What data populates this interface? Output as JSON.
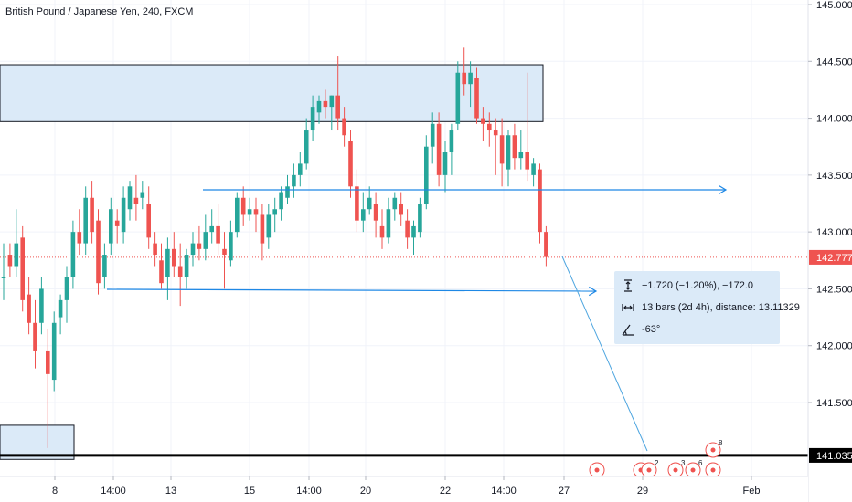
{
  "header": {
    "title": "British Pound / Japanese Yen, 240, FXCM"
  },
  "measure": {
    "price_change": "−1.720 (−1.20%), −172.0",
    "bars_distance": "13 bars (2d 4h), distance: 13.11329",
    "angle": "-63°"
  },
  "chart_data": {
    "type": "candlestick",
    "symbol": "British Pound / Japanese Yen",
    "interval": "240",
    "source": "FXCM",
    "y_ticks": [
      145.0,
      144.5,
      144.0,
      143.5,
      143.0,
      142.5,
      142.0,
      141.5
    ],
    "y_tick_labels": [
      "145.000",
      "144.500",
      "144.000",
      "143.500",
      "143.000",
      "142.500",
      "142.000",
      "141.500"
    ],
    "ylim": [
      140.85,
      145.05
    ],
    "x_tick_labels": [
      "8",
      "14:00",
      "13",
      "15",
      "14:00",
      "20",
      "22",
      "14:00",
      "27",
      "29",
      "Feb"
    ],
    "last_price": "142.777",
    "support_price": "141.035",
    "candles": [
      [
        142.6,
        142.9,
        142.4,
        142.6
      ],
      [
        142.8,
        142.9,
        142.6,
        142.7
      ],
      [
        142.7,
        143.2,
        142.6,
        142.9
      ],
      [
        142.95,
        143.05,
        142.3,
        142.4
      ],
      [
        142.45,
        142.6,
        142.1,
        142.2
      ],
      [
        142.2,
        142.4,
        141.8,
        141.95
      ],
      [
        142.2,
        142.6,
        142.1,
        142.5
      ],
      [
        141.95,
        142.15,
        141.1,
        141.75
      ],
      [
        141.7,
        142.3,
        141.6,
        142.2
      ],
      [
        142.25,
        142.45,
        142.1,
        142.4
      ],
      [
        142.4,
        142.7,
        142.2,
        142.6
      ],
      [
        142.6,
        143.1,
        142.5,
        143.0
      ],
      [
        143.0,
        143.2,
        142.8,
        142.9
      ],
      [
        142.9,
        143.4,
        142.8,
        143.3
      ],
      [
        143.3,
        143.45,
        142.9,
        143.0
      ],
      [
        143.1,
        143.2,
        142.45,
        142.55
      ],
      [
        142.6,
        142.9,
        142.5,
        142.8
      ],
      [
        142.9,
        143.3,
        142.8,
        143.2
      ],
      [
        143.1,
        143.2,
        142.9,
        143.05
      ],
      [
        143.0,
        143.4,
        142.9,
        143.3
      ],
      [
        143.2,
        143.45,
        143.1,
        143.4
      ],
      [
        143.3,
        143.5,
        143.1,
        143.25
      ],
      [
        143.3,
        143.45,
        143.2,
        143.35
      ],
      [
        143.25,
        143.4,
        142.85,
        142.95
      ],
      [
        142.9,
        143.0,
        142.7,
        142.8
      ],
      [
        142.75,
        142.9,
        142.5,
        142.55
      ],
      [
        142.6,
        142.95,
        142.4,
        142.85
      ],
      [
        142.85,
        143.0,
        142.6,
        142.7
      ],
      [
        142.7,
        142.9,
        142.35,
        142.6
      ],
      [
        142.6,
        142.85,
        142.5,
        142.8
      ],
      [
        142.8,
        143.0,
        142.7,
        142.9
      ],
      [
        142.9,
        143.05,
        142.75,
        142.85
      ],
      [
        142.85,
        143.15,
        142.75,
        143.0
      ],
      [
        143.0,
        143.2,
        142.9,
        143.05
      ],
      [
        143.05,
        143.25,
        142.8,
        142.9
      ],
      [
        142.85,
        143.0,
        142.5,
        142.8
      ],
      [
        142.75,
        143.1,
        142.7,
        143.0
      ],
      [
        143.0,
        143.35,
        142.95,
        143.3
      ],
      [
        143.3,
        143.4,
        143.05,
        143.15
      ],
      [
        143.15,
        143.3,
        143.1,
        143.2
      ],
      [
        143.2,
        143.3,
        143.0,
        143.15
      ],
      [
        143.15,
        143.25,
        142.75,
        142.9
      ],
      [
        142.95,
        143.25,
        142.85,
        143.15
      ],
      [
        143.15,
        143.3,
        143.0,
        143.2
      ],
      [
        143.2,
        143.4,
        143.1,
        143.35
      ],
      [
        143.3,
        143.5,
        143.25,
        143.4
      ],
      [
        143.4,
        143.6,
        143.3,
        143.5
      ],
      [
        143.5,
        143.7,
        143.4,
        143.6
      ],
      [
        143.6,
        144.0,
        143.55,
        143.9
      ],
      [
        143.9,
        144.2,
        143.8,
        144.1
      ],
      [
        144.05,
        144.2,
        143.95,
        144.15
      ],
      [
        144.15,
        144.25,
        144.0,
        144.1
      ],
      [
        144.1,
        144.2,
        143.9,
        144.2
      ],
      [
        144.2,
        144.55,
        143.9,
        144.0
      ],
      [
        144.0,
        144.1,
        143.75,
        143.85
      ],
      [
        143.8,
        143.9,
        143.3,
        143.4
      ],
      [
        143.4,
        143.55,
        143.0,
        143.1
      ],
      [
        143.1,
        143.35,
        143.0,
        143.2
      ],
      [
        143.2,
        143.4,
        143.15,
        143.3
      ],
      [
        143.25,
        143.35,
        142.95,
        143.1
      ],
      [
        143.05,
        143.2,
        142.85,
        142.95
      ],
      [
        142.95,
        143.3,
        142.9,
        143.2
      ],
      [
        143.2,
        143.35,
        143.1,
        143.3
      ],
      [
        143.25,
        143.35,
        143.05,
        143.15
      ],
      [
        143.1,
        143.2,
        142.85,
        142.95
      ],
      [
        142.95,
        143.1,
        142.8,
        143.05
      ],
      [
        143.0,
        143.3,
        142.95,
        143.25
      ],
      [
        143.25,
        143.85,
        143.2,
        143.75
      ],
      [
        143.75,
        144.05,
        143.6,
        143.95
      ],
      [
        143.95,
        144.05,
        143.4,
        143.5
      ],
      [
        143.5,
        143.8,
        143.35,
        143.7
      ],
      [
        143.7,
        143.95,
        143.5,
        143.9
      ],
      [
        143.95,
        144.5,
        143.9,
        144.4
      ],
      [
        144.4,
        144.62,
        144.2,
        144.3
      ],
      [
        144.3,
        144.5,
        144.1,
        144.4
      ],
      [
        144.35,
        144.45,
        143.95,
        144.0
      ],
      [
        144.0,
        144.1,
        143.8,
        143.95
      ],
      [
        143.95,
        144.05,
        143.75,
        143.9
      ],
      [
        143.9,
        144.0,
        143.5,
        143.85
      ],
      [
        143.85,
        144.0,
        143.4,
        143.6
      ],
      [
        143.55,
        143.9,
        143.4,
        143.85
      ],
      [
        143.85,
        143.95,
        143.55,
        143.65
      ],
      [
        143.65,
        143.9,
        143.55,
        143.7
      ],
      [
        143.7,
        144.4,
        143.45,
        143.55
      ],
      [
        143.5,
        143.65,
        143.4,
        143.6
      ],
      [
        143.55,
        143.6,
        142.9,
        143.0
      ],
      [
        143.0,
        143.05,
        142.7,
        142.78
      ]
    ]
  }
}
